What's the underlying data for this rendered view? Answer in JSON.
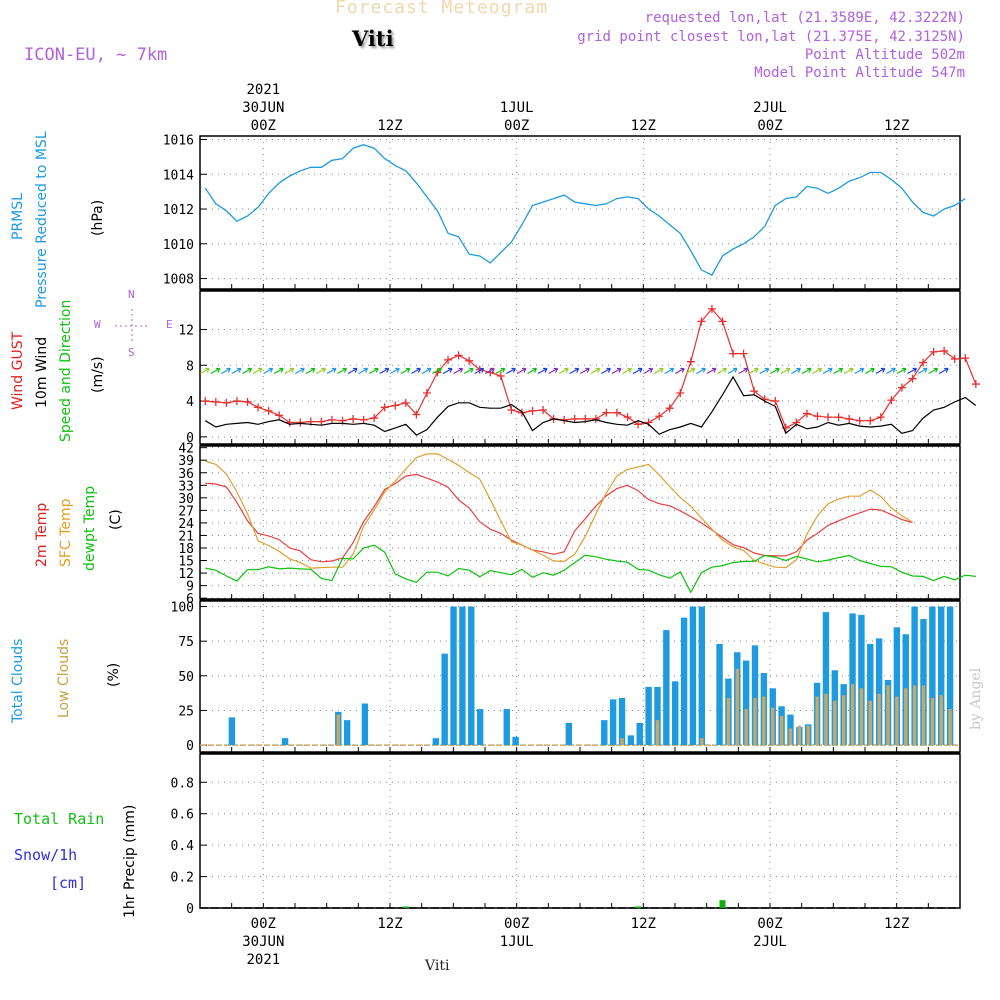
{
  "header": {
    "title": "Forecast Meteogram",
    "station": "Viti",
    "model": "ICON-EU, ~ 7km",
    "requested": "requested lon,lat (21.3589E, 42.3222N)",
    "gridpoint": "grid point closest lon,lat (21.375E, 42.3125N)",
    "point_alt": "Point Altitude 502m",
    "model_alt": "Model Point Altitude 547m",
    "footer_station": "Viti",
    "credit": "by Angel"
  },
  "time_axis": {
    "top": [
      {
        "hour": 3,
        "lines": [
          "2021",
          "30JUN",
          "00Z"
        ]
      },
      {
        "hour": 15,
        "lines": [
          "12Z"
        ]
      },
      {
        "hour": 27,
        "lines": [
          "1JUL",
          "00Z"
        ]
      },
      {
        "hour": 39,
        "lines": [
          "12Z"
        ]
      },
      {
        "hour": 51,
        "lines": [
          "2JUL",
          "00Z"
        ]
      },
      {
        "hour": 63,
        "lines": [
          "12Z"
        ]
      }
    ],
    "bottom": [
      {
        "hour": 3,
        "lines": [
          "00Z",
          "30JUN",
          "2021"
        ]
      },
      {
        "hour": 15,
        "lines": [
          "12Z"
        ]
      },
      {
        "hour": 27,
        "lines": [
          "00Z",
          "1JUL"
        ]
      },
      {
        "hour": 39,
        "lines": [
          "12Z"
        ]
      },
      {
        "hour": 51,
        "lines": [
          "00Z",
          "2JUL"
        ]
      },
      {
        "hour": 63,
        "lines": [
          "12Z"
        ]
      }
    ]
  },
  "panel_labels": {
    "pressure": [
      {
        "text": "PRMSL",
        "color": "#1e9be0"
      },
      {
        "text": "Pressure Reduced to MSL",
        "color": "#1e9be0"
      },
      {
        "text": "(hPa)",
        "color": "#000000"
      }
    ],
    "wind": [
      {
        "text": "Wind GUST",
        "color": "#e02020"
      },
      {
        "text": "10m Wind",
        "color": "#000000"
      },
      {
        "text": "Speed and Direction",
        "color": "#10c010"
      },
      {
        "text": "(m/s)",
        "color": "#000000"
      }
    ],
    "temp": [
      {
        "text": "2m Temp",
        "color": "#e02020"
      },
      {
        "text": "SFC Temp",
        "color": "#e0a020"
      },
      {
        "text": "dewpt Temp",
        "color": "#10c010"
      },
      {
        "text": "(C)",
        "color": "#000000"
      }
    ],
    "clouds": [
      {
        "text": "Total Clouds",
        "color": "#1e9be0"
      },
      {
        "text": "Low Clouds",
        "color": "#c8a040"
      },
      {
        "text": "(%)",
        "color": "#000000"
      }
    ],
    "precip": {
      "total": "Total  Rain",
      "snow": "Snow/1h",
      "cm": "[cm]",
      "axis": "1hr Precip (mm)"
    }
  },
  "compass": {
    "n": "N",
    "s": "S",
    "w": "W",
    "e": "E"
  },
  "colors": {
    "pressure": "#1e9be0",
    "gust": "#e83030",
    "wind": "#000000",
    "temp2m": "#e84040",
    "sfc": "#e0a030",
    "dew": "#10c010",
    "total_cloud": "#1e9be0",
    "low_cloud": "#c8a868",
    "rain": "#10b010"
  },
  "chart_data": [
    {
      "type": "line",
      "name": "pressure",
      "ylabel": "(hPa)",
      "ylim": [
        1007.4,
        1016.2
      ],
      "yticks": [
        1008,
        1010,
        1012,
        1014,
        1016
      ],
      "series": [
        {
          "name": "PRMSL",
          "values": [
            1013.2,
            1012.3,
            1011.9,
            1011.3,
            1011.6,
            1012.1,
            1012.9,
            1013.5,
            1013.9,
            1014.2,
            1014.4,
            1014.4,
            1014.8,
            1014.9,
            1015.5,
            1015.7,
            1015.5,
            1014.9,
            1014.5,
            1014.2,
            1013.5,
            1012.7,
            1011.9,
            1010.6,
            1010.4,
            1009.4,
            1009.3,
            1008.9,
            1009.5,
            1010.1,
            1011.1,
            1012.2,
            1012.4,
            1012.6,
            1012.8,
            1012.4,
            1012.3,
            1012.2,
            1012.3,
            1012.6,
            1012.7,
            1012.6,
            1012.0,
            1011.6,
            1011.1,
            1010.6,
            1009.6,
            1008.5,
            1008.2,
            1009.3,
            1009.7,
            1010.0,
            1010.4,
            1011.0,
            1012.2,
            1012.6,
            1012.7,
            1013.3,
            1013.2,
            1012.9,
            1013.2,
            1013.6,
            1013.8,
            1014.1,
            1014.1,
            1013.7,
            1013.2,
            1012.4,
            1011.8,
            1011.6,
            1012.0,
            1012.2,
            1012.6
          ]
        }
      ]
    },
    {
      "type": "line",
      "name": "wind",
      "ylabel": "(m/s)",
      "ylim": [
        -0.8,
        16.3
      ],
      "yticks": [
        0,
        4,
        8,
        12
      ],
      "series": [
        {
          "name": "Wind GUST",
          "values": [
            4.0,
            3.9,
            3.8,
            4.0,
            3.9,
            3.3,
            2.9,
            2.4,
            1.6,
            1.6,
            1.7,
            1.7,
            1.9,
            1.8,
            2.0,
            1.9,
            2.1,
            3.3,
            3.5,
            3.8,
            2.5,
            4.9,
            7.2,
            8.6,
            9.1,
            8.5,
            7.5,
            7.2,
            6.8,
            3.0,
            2.7,
            2.9,
            3.0,
            2.0,
            1.9,
            2.0,
            2.0,
            2.0,
            2.7,
            2.7,
            2.2,
            1.4,
            1.6,
            2.3,
            3.2,
            4.9,
            8.4,
            12.9,
            14.3,
            12.9,
            9.3,
            9.3,
            5.1,
            4.2,
            4.0,
            1.0,
            1.6,
            2.6,
            2.3,
            2.2,
            2.2,
            2.0,
            1.8,
            1.8,
            2.2,
            4.1,
            5.5,
            6.5,
            8.3,
            9.5,
            9.6,
            8.7,
            8.8,
            5.9
          ]
        },
        {
          "name": "10m Wind",
          "values": [
            1.8,
            1.1,
            1.4,
            1.5,
            1.6,
            1.4,
            1.7,
            1.9,
            1.4,
            1.5,
            1.4,
            1.3,
            1.5,
            1.5,
            1.4,
            1.5,
            1.3,
            0.6,
            1.0,
            1.4,
            0.2,
            0.8,
            2.2,
            3.4,
            3.8,
            3.8,
            3.3,
            3.2,
            3.2,
            3.6,
            2.8,
            0.7,
            1.6,
            2.0,
            1.8,
            1.6,
            1.7,
            1.9,
            1.6,
            1.4,
            1.3,
            1.8,
            1.4,
            0.3,
            0.8,
            1.1,
            1.5,
            1.1,
            2.8,
            4.7,
            6.7,
            4.6,
            4.7,
            4.0,
            3.4,
            0.4,
            1.4,
            0.9,
            1.1,
            1.6,
            1.3,
            1.5,
            1.2,
            1.1,
            1.2,
            1.4,
            0.4,
            0.7,
            2.1,
            3.0,
            3.3,
            3.9,
            4.4,
            3.5
          ]
        }
      ]
    },
    {
      "type": "line",
      "name": "temperature",
      "ylabel": "(C)",
      "ylim": [
        5.8,
        42.4
      ],
      "yticks": [
        6,
        9,
        12,
        15,
        18,
        21,
        24,
        27,
        30,
        33,
        36,
        39,
        42
      ],
      "series": [
        {
          "name": "2m Temp",
          "values": [
            33.5,
            33.3,
            32.6,
            28.9,
            24.5,
            21.5,
            20.9,
            20.0,
            18.0,
            17.3,
            15.2,
            14.7,
            14.9,
            15.6,
            19.3,
            24.3,
            27.9,
            32.0,
            33.4,
            35.2,
            35.6,
            34.7,
            33.8,
            32.5,
            29.5,
            27.6,
            24.3,
            22.5,
            21.5,
            19.9,
            18.7,
            17.5,
            17.1,
            16.5,
            17.1,
            22.1,
            25.0,
            28.0,
            30.5,
            32.2,
            33.0,
            31.7,
            29.6,
            28.6,
            28.1,
            26.9,
            25.5,
            24.0,
            22.3,
            20.5,
            18.8,
            18.1,
            16.8,
            16.2,
            16.1,
            16.1,
            17.1,
            19.9,
            21.5,
            23.4,
            24.5,
            25.5,
            26.4,
            27.3,
            27.1,
            26.0,
            24.8,
            24.1
          ]
        },
        {
          "name": "SFC Temp",
          "values": [
            38.8,
            38.0,
            35.7,
            31.4,
            26.2,
            19.7,
            18.6,
            17.2,
            15.4,
            14.5,
            13.2,
            13.3,
            13.4,
            13.4,
            16.5,
            23.2,
            27.1,
            31.4,
            34.0,
            36.9,
            39.6,
            40.5,
            40.5,
            39.2,
            37.8,
            36.0,
            34.5,
            29.6,
            24.5,
            19.5,
            18.7,
            17.5,
            16.3,
            14.9,
            14.8,
            16.5,
            20.8,
            26.1,
            31.2,
            35.2,
            36.8,
            37.4,
            38.0,
            35.5,
            32.7,
            30.1,
            28.0,
            25.2,
            22.5,
            19.9,
            18.3,
            17.4,
            15.0,
            14.2,
            13.4,
            13.3,
            15.2,
            21.3,
            25.7,
            28.6,
            29.7,
            30.4,
            30.4,
            31.9,
            30.3,
            27.6,
            25.7,
            24.2
          ]
        },
        {
          "name": "dewpt Temp",
          "values": [
            13.2,
            12.7,
            11.3,
            10.1,
            12.8,
            12.8,
            13.5,
            13.0,
            13.2,
            13.0,
            12.9,
            10.7,
            10.2,
            15.5,
            15.4,
            18.0,
            18.7,
            17.0,
            11.8,
            10.6,
            9.8,
            12.2,
            12.2,
            11.3,
            13.1,
            12.7,
            11.1,
            12.6,
            12.1,
            11.6,
            12.9,
            11.0,
            12.1,
            11.5,
            12.7,
            14.5,
            16.3,
            15.9,
            15.3,
            14.9,
            14.6,
            12.9,
            12.7,
            11.6,
            10.8,
            12.3,
            7.4,
            12.1,
            13.4,
            13.8,
            14.5,
            14.8,
            14.8,
            16.2,
            15.8,
            15.0,
            16.0,
            15.4,
            14.7,
            15.1,
            15.7,
            16.2,
            15.0,
            14.3,
            13.6,
            13.5,
            12.2,
            11.3,
            11.2,
            10.2,
            11.2,
            10.4,
            11.5,
            11.2
          ]
        }
      ]
    },
    {
      "type": "bar",
      "name": "clouds",
      "ylabel": "(%)",
      "ylim": [
        -5,
        104
      ],
      "yticks": [
        0,
        25,
        50,
        75,
        100
      ],
      "series": [
        {
          "name": "Total Clouds",
          "values": [
            0,
            0,
            0,
            20,
            0,
            0,
            0,
            0,
            0,
            5,
            0,
            0,
            0,
            0,
            0,
            24,
            18,
            0,
            30,
            0,
            0,
            0,
            0,
            0,
            0,
            0,
            5,
            66,
            100,
            100,
            100,
            26,
            0,
            0,
            26,
            6,
            0,
            0,
            0,
            0,
            0,
            16,
            0,
            0,
            0,
            18,
            33,
            34,
            7,
            16,
            42,
            42,
            83,
            46,
            92,
            100,
            100,
            0,
            73,
            48,
            67,
            61,
            72,
            52,
            41,
            28,
            22,
            13,
            15,
            45,
            96,
            54,
            44,
            95,
            94,
            73,
            77,
            47,
            85,
            80,
            100,
            91,
            100,
            100,
            100
          ]
        },
        {
          "name": "Low Clouds",
          "values": [
            0,
            0,
            0,
            0,
            0,
            0,
            0,
            0,
            0,
            0,
            0,
            0,
            0,
            0,
            0,
            22,
            0,
            0,
            0,
            0,
            0,
            0,
            0,
            0,
            0,
            0,
            0,
            0,
            0,
            0,
            0,
            0,
            0,
            0,
            0,
            0,
            0,
            0,
            0,
            0,
            0,
            0,
            0,
            0,
            0,
            0,
            0,
            5,
            0,
            0,
            0,
            18,
            0,
            0,
            0,
            0,
            5,
            0,
            0,
            34,
            55,
            26,
            34,
            35,
            27,
            21,
            12,
            14,
            14,
            35,
            37,
            32,
            36,
            44,
            41,
            32,
            37,
            43,
            35,
            41,
            43,
            43,
            34,
            36,
            26
          ]
        }
      ]
    },
    {
      "type": "bar",
      "name": "precip",
      "ylabel": "1hr Precip (mm)",
      "ylim": [
        0,
        0.98
      ],
      "yticks": [
        0,
        0.2,
        0.4,
        0.6,
        0.8
      ],
      "series": [
        {
          "name": "Total Rain",
          "values": [
            {
              "hour": 16.5,
              "value": 0.01
            },
            {
              "hour": 38.5,
              "value": 0.01
            },
            {
              "hour": 46.5,
              "value": 0.05
            }
          ]
        },
        {
          "name": "Snow/1h",
          "values": []
        }
      ]
    }
  ]
}
